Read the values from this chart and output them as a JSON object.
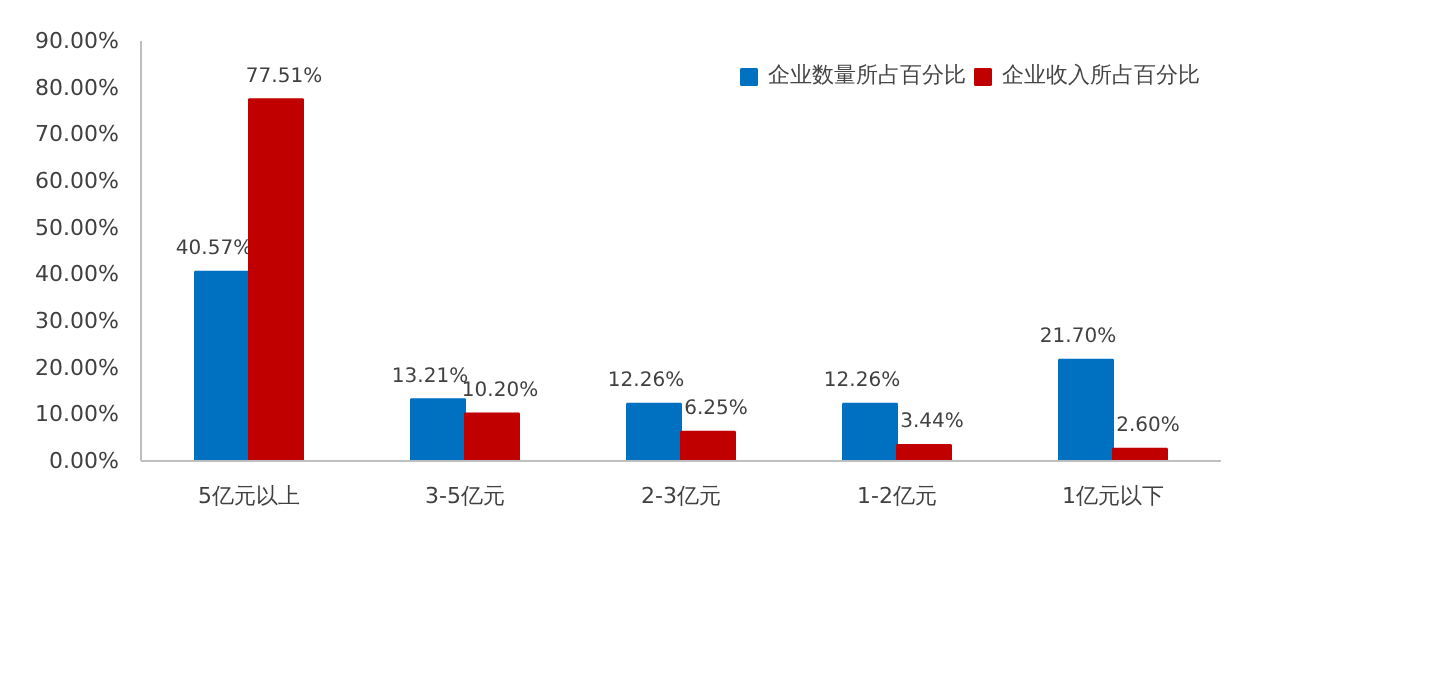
{
  "chart_data": {
    "type": "bar",
    "categories": [
      "5亿元以上",
      "3-5亿元",
      "2-3亿元",
      "1-2亿元",
      "1亿元以下"
    ],
    "series": [
      {
        "name": "企业数量所占百分比",
        "color": "#0070c0",
        "values": [
          40.57,
          13.21,
          12.26,
          12.26,
          21.7
        ],
        "value_labels": [
          "40.57%",
          "13.21%",
          "12.26%",
          "12.26%",
          "21.70%"
        ]
      },
      {
        "name": "企业收入所占百分比",
        "color": "#c00000",
        "values": [
          77.51,
          10.2,
          6.25,
          3.44,
          2.6
        ],
        "value_labels": [
          "77.51%",
          "10.20%",
          "6.25%",
          "3.44%",
          "2.60%"
        ]
      }
    ],
    "ylim": [
      0,
      90
    ],
    "yticks": [
      {
        "value": 0,
        "label": "0.00%"
      },
      {
        "value": 10,
        "label": "10.00%"
      },
      {
        "value": 20,
        "label": "20.00%"
      },
      {
        "value": 30,
        "label": "30.00%"
      },
      {
        "value": 40,
        "label": "40.00%"
      },
      {
        "value": 50,
        "label": "50.00%"
      },
      {
        "value": 60,
        "label": "60.00%"
      },
      {
        "value": 70,
        "label": "70.00%"
      },
      {
        "value": 80,
        "label": "80.00%"
      },
      {
        "value": 90,
        "label": "90.00%"
      }
    ],
    "grid": false,
    "legend": "top right"
  }
}
